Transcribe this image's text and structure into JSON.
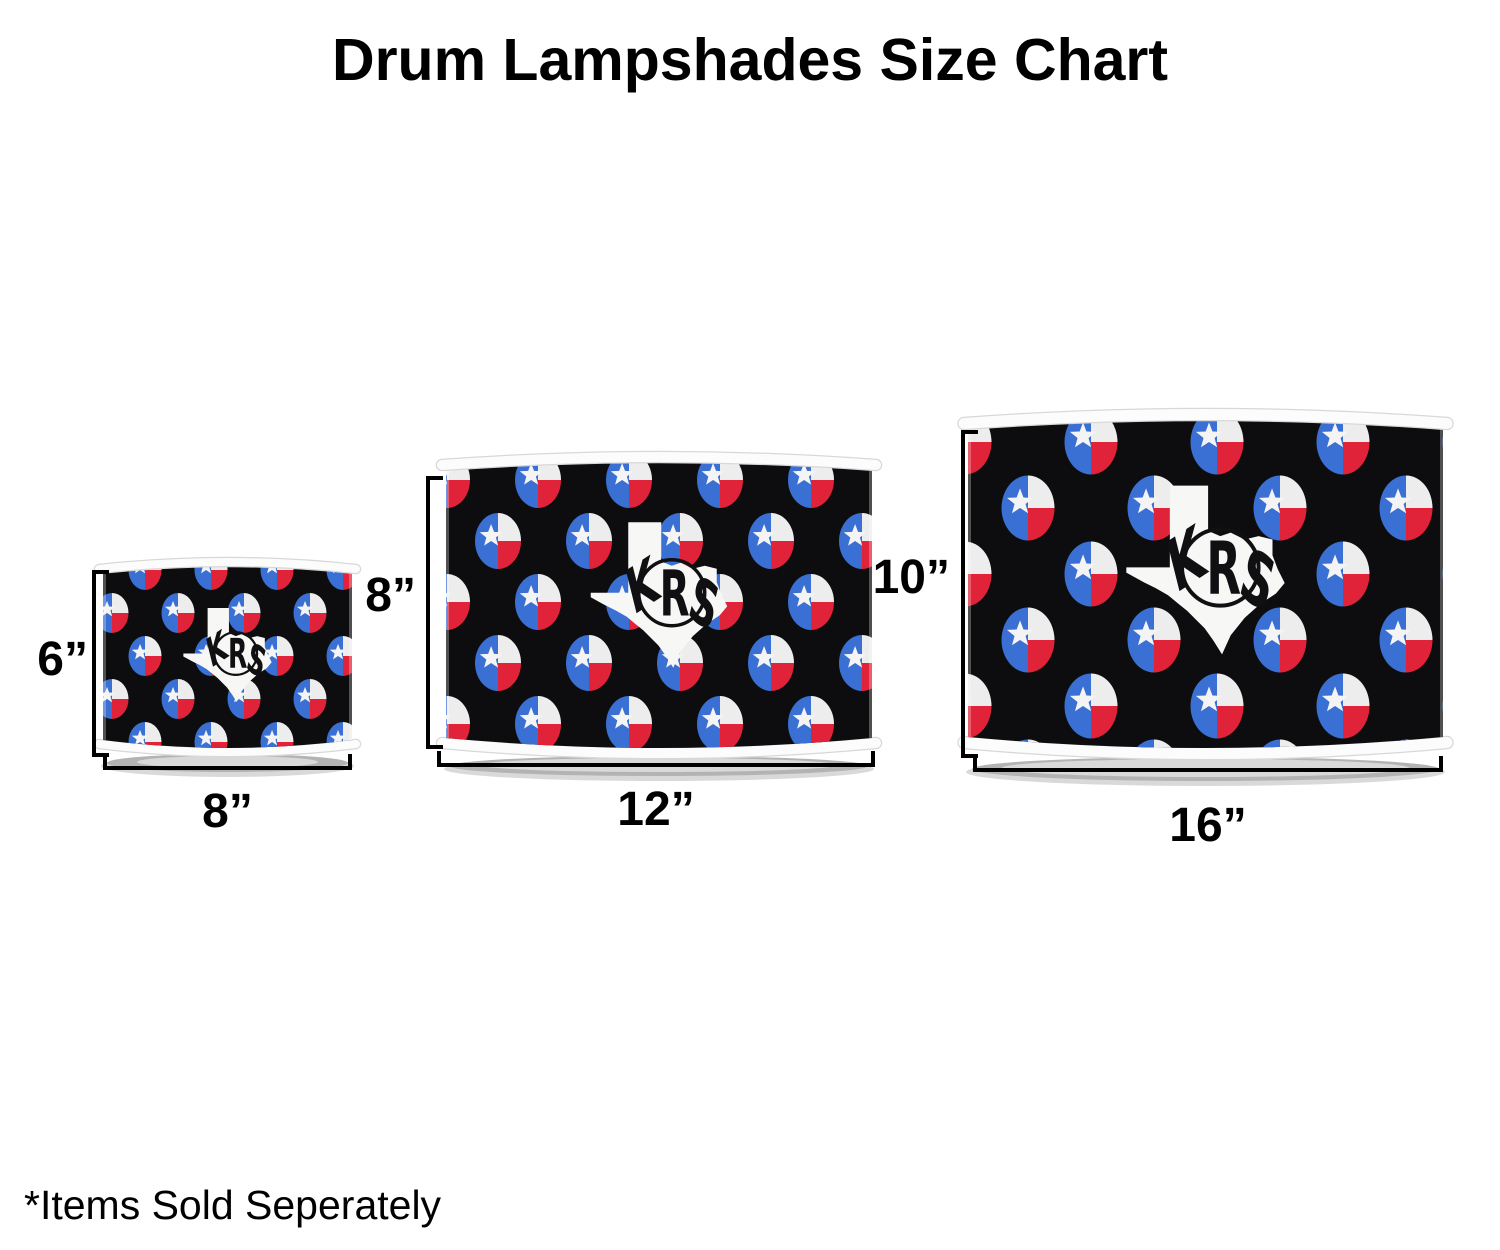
{
  "title": "Drum Lampshades Size Chart",
  "footer_note": "*Items Sold Seperately",
  "monogram": "KRS",
  "pattern": {
    "name": "texas-flag-polka-dots",
    "description": "Texas flag circles on black with white Texas state silhouette monogram"
  },
  "colors": {
    "flag_blue": "#3a6fd3",
    "flag_red": "#e02339",
    "flag_white": "#ededed",
    "star_white": "#f4f4f4",
    "shade_black": "#0d0d0f",
    "silhouette_white": "#f7f7f6",
    "line_black": "#000000"
  },
  "shades": [
    {
      "name": "small",
      "height_label": "6”",
      "width_label": "8”"
    },
    {
      "name": "medium",
      "height_label": "8”",
      "width_label": "12”"
    },
    {
      "name": "large",
      "height_label": "10”",
      "width_label": "16”"
    }
  ]
}
